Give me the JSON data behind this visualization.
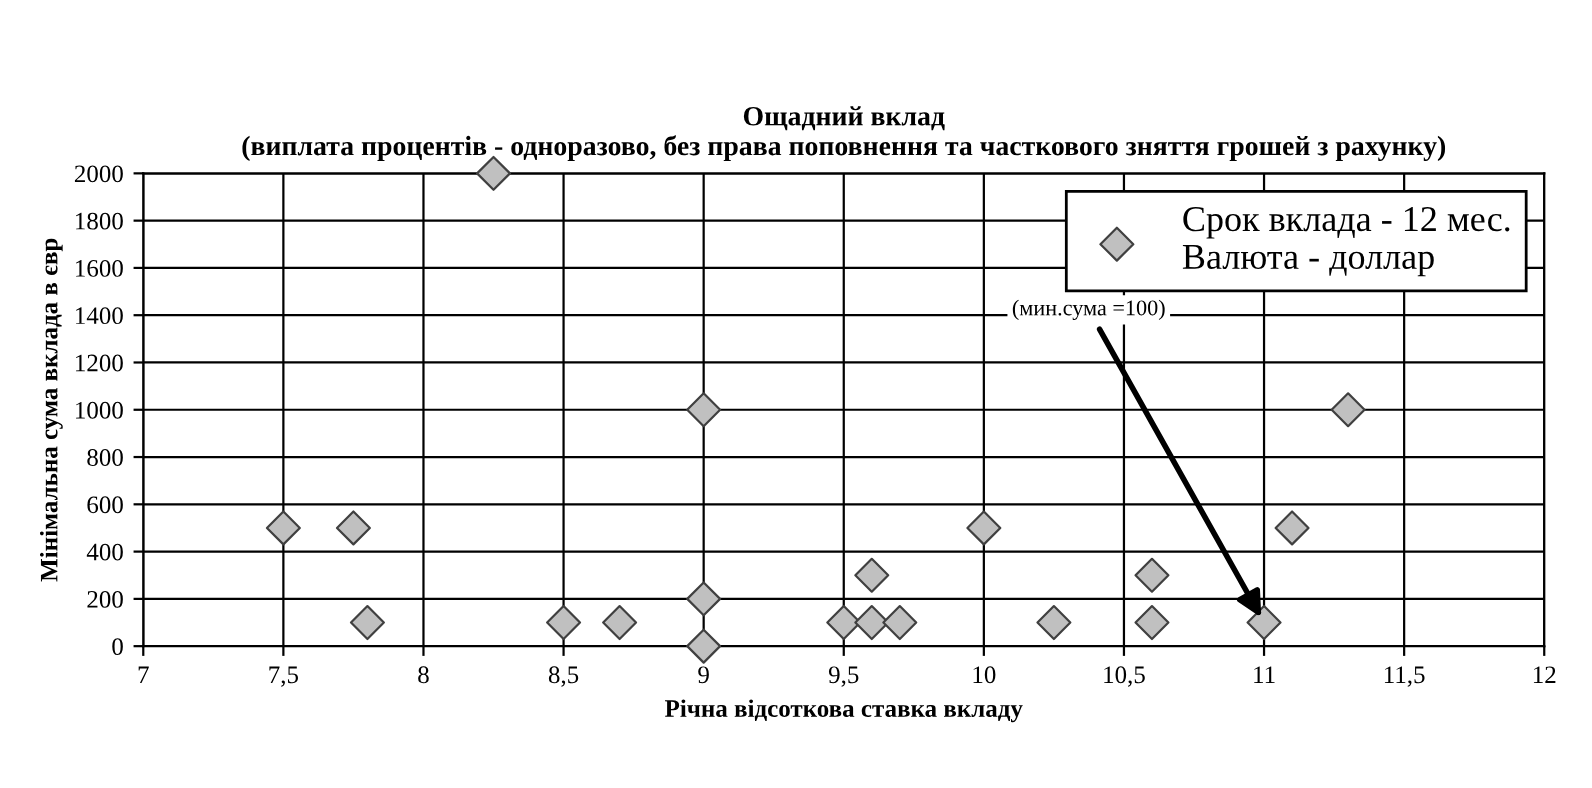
{
  "chart_data": {
    "type": "scatter",
    "title": "Ощадний вклад\n(виплата процентів - одноразово, без права поповнення та часткового зняття грошей з рахунку)",
    "xlabel": "Річна відсоткова ставка вкладу",
    "ylabel": "Мінімальна сума вклада в євр",
    "x": [
      7.5,
      7.75,
      7.8,
      8.25,
      8.5,
      8.7,
      9,
      9,
      9,
      9.5,
      9.6,
      9.6,
      9.7,
      10,
      10.25,
      10.6,
      10.6,
      11,
      11.1,
      11.3
    ],
    "series": [
      {
        "name": "Срок вклада - 12 мес.\nВалюта - доллар",
        "color": "#c0c0c0",
        "values": [
          500,
          500,
          100,
          2000,
          100,
          100,
          1000,
          200,
          0,
          100,
          300,
          100,
          100,
          500,
          100,
          300,
          100,
          100,
          500,
          1000
        ]
      }
    ],
    "xlim": [
      7,
      12
    ],
    "xticks": [
      7,
      {
        "value": 7.5,
        "label": "7,5"
      },
      8,
      {
        "value": 8.5,
        "label": "8,5"
      },
      9,
      {
        "value": 9.5,
        "label": "9,5"
      },
      10,
      {
        "value": 10.5,
        "label": "10,5"
      },
      11,
      {
        "value": 11.5,
        "label": "11,5"
      },
      12
    ],
    "ylim": [
      0,
      2000
    ],
    "yticks": [
      0,
      200,
      400,
      600,
      800,
      1000,
      1200,
      1400,
      1600,
      1800,
      2000
    ],
    "grid": true,
    "legend": "top right",
    "marker": "diamond",
    "annotations": [
      {
        "text": "(мин.сума =100)",
        "x": 11,
        "y": 100
      }
    ]
  }
}
